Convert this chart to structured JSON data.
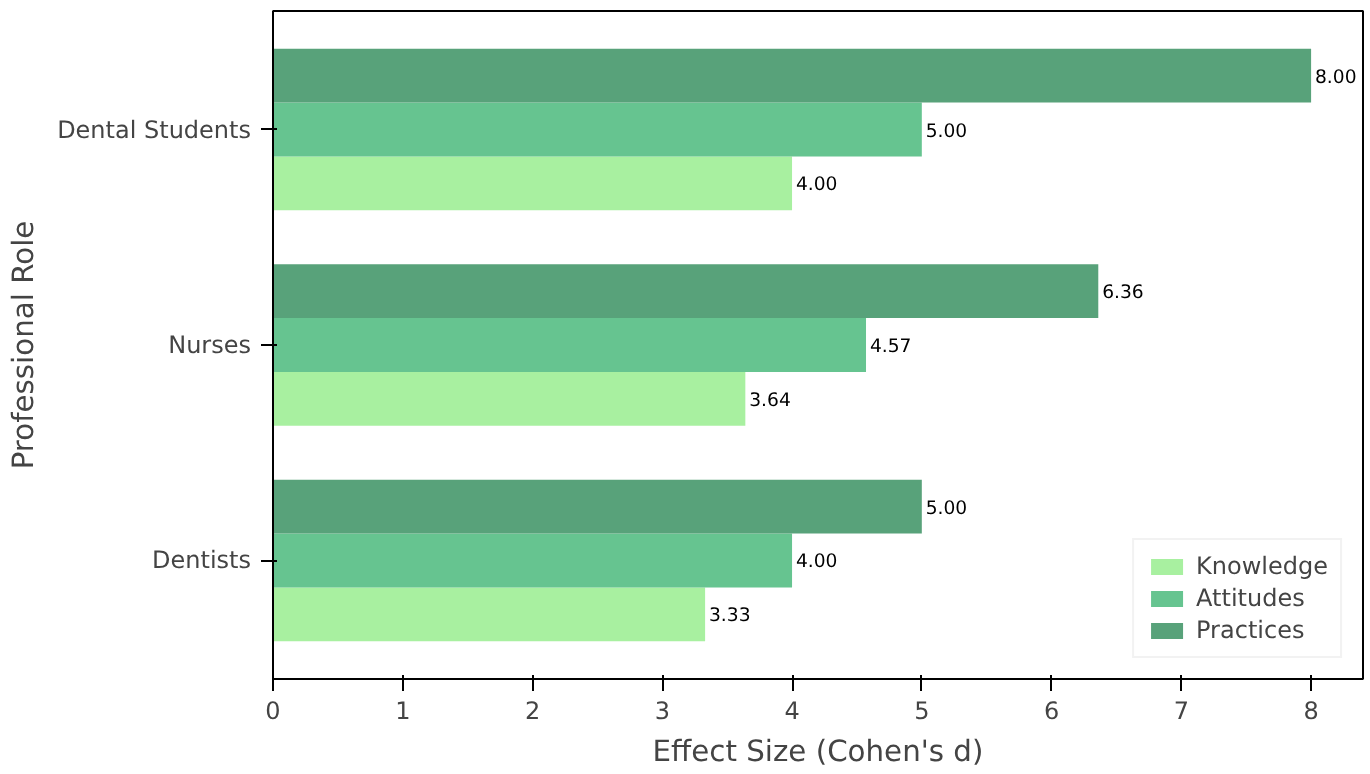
{
  "chart_data": {
    "type": "bar",
    "orientation": "horizontal",
    "xlabel": "Effect Size (Cohen's d)",
    "ylabel": "Professional Role",
    "categories": [
      "Dental Students",
      "Nurses",
      "Dentists"
    ],
    "series": [
      {
        "name": "Knowledge",
        "color": "#a8f0a0",
        "values": [
          4.0,
          3.64,
          3.33
        ],
        "value_labels": [
          "4.00",
          "3.64",
          "3.33"
        ]
      },
      {
        "name": "Attitudes",
        "color": "#66c490",
        "values": [
          5.0,
          4.57,
          4.0
        ],
        "value_labels": [
          "5.00",
          "4.57",
          "4.00"
        ]
      },
      {
        "name": "Practices",
        "color": "#58a27a",
        "values": [
          8.0,
          6.36,
          5.0
        ],
        "value_labels": [
          "8.00",
          "6.36",
          "5.00"
        ]
      }
    ],
    "xlim": [
      0,
      8.4
    ],
    "xticks": [
      0,
      1,
      2,
      3,
      4,
      5,
      6,
      7,
      8
    ],
    "grid": false,
    "legend": "bottom right"
  }
}
